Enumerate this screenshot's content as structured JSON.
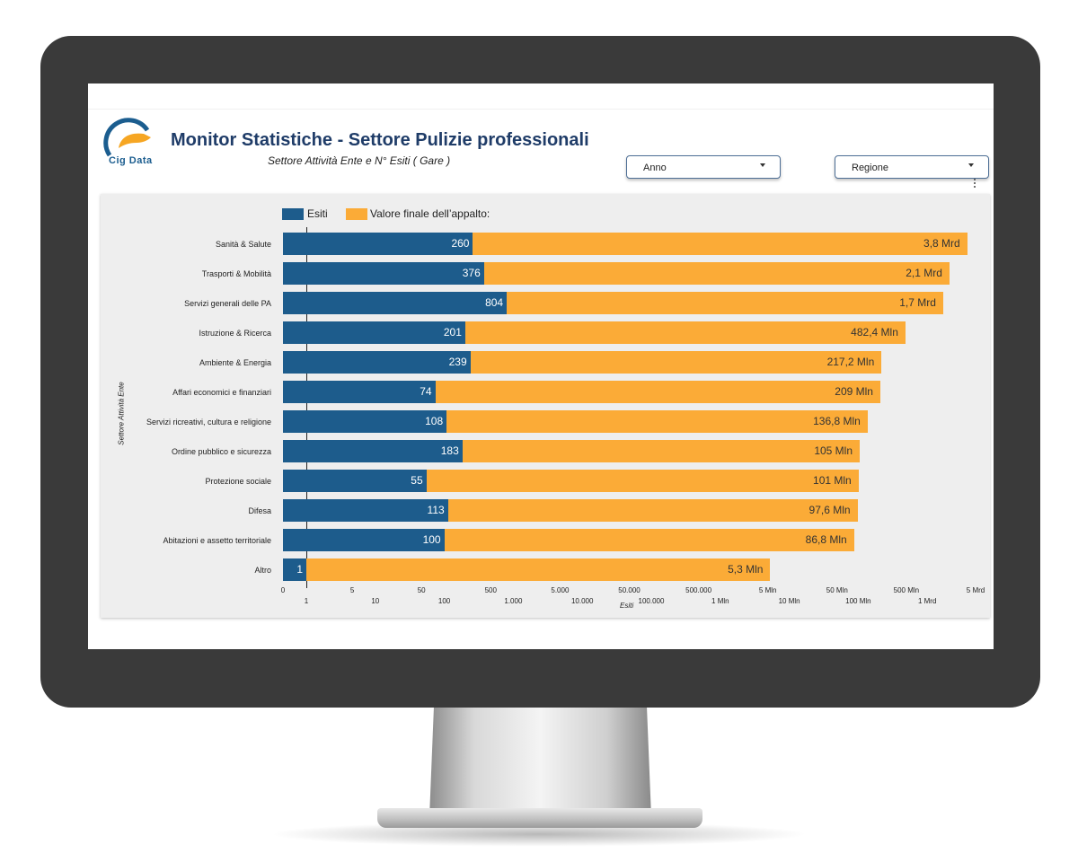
{
  "header": {
    "logo_text": "Cig Data",
    "title": "Monitor Statistiche - Settore Pulizie professionali",
    "subtitle": "Settore Attività Ente e N° Esiti ( Gare )"
  },
  "filters": {
    "anno_label": "Anno",
    "regione_label": "Regione"
  },
  "chart_data": {
    "type": "bar",
    "orientation": "horizontal",
    "stacked": true,
    "ylabel": "Settore Attività Ente",
    "xlabel": "Esiti",
    "categories": [
      "Sanità & Salute",
      "Trasporti & Mobilità",
      "Servizi generali delle PA",
      "Istruzione & Ricerca",
      "Ambiente & Energia",
      "Affari economici e finanziari",
      "Servizi ricreativi, cultura e religione",
      "Ordine pubblico e sicurezza",
      "Protezione sociale",
      "Difesa",
      "Abitazioni e assetto territoriale",
      "Altro"
    ],
    "series": [
      {
        "name": "Esiti",
        "color": "#1d5c8c",
        "values": [
          260,
          376,
          804,
          201,
          239,
          74,
          108,
          183,
          55,
          113,
          100,
          1
        ],
        "labels": [
          "260",
          "376",
          "804",
          "201",
          "239",
          "74",
          "108",
          "183",
          "55",
          "113",
          "100",
          "1"
        ]
      },
      {
        "name": "Valore finale dell’appalto:",
        "color": "#fbab37",
        "values": [
          3800000000,
          2100000000,
          1700000000,
          482400000,
          217200000,
          209000000,
          136800000,
          105000000,
          101000000,
          97600000,
          86800000,
          5300000
        ],
        "labels": [
          "3,8 Mrd",
          "2,1 Mrd",
          "1,7 Mrd",
          "482,4 Mln",
          "217,2 Mln",
          "209 Mln",
          "136,8 Mln",
          "105 Mln",
          "101 Mln",
          "97,6 Mln",
          "86,8 Mln",
          "5,3 Mln"
        ]
      }
    ],
    "x_ticks_top": [
      "0",
      "5",
      "50",
      "500",
      "5.000",
      "50.000",
      "500.000",
      "5 Mln",
      "50 Mln",
      "500 Mln",
      "5 Mrd"
    ],
    "x_ticks_bottom": [
      "1",
      "10",
      "100",
      "1.000",
      "10.000",
      "100.000",
      "1 Mln",
      "10 Mln",
      "100 Mln",
      "1 Mrd"
    ],
    "x_scale": "log",
    "legend_position": "top-left",
    "grid": false
  }
}
